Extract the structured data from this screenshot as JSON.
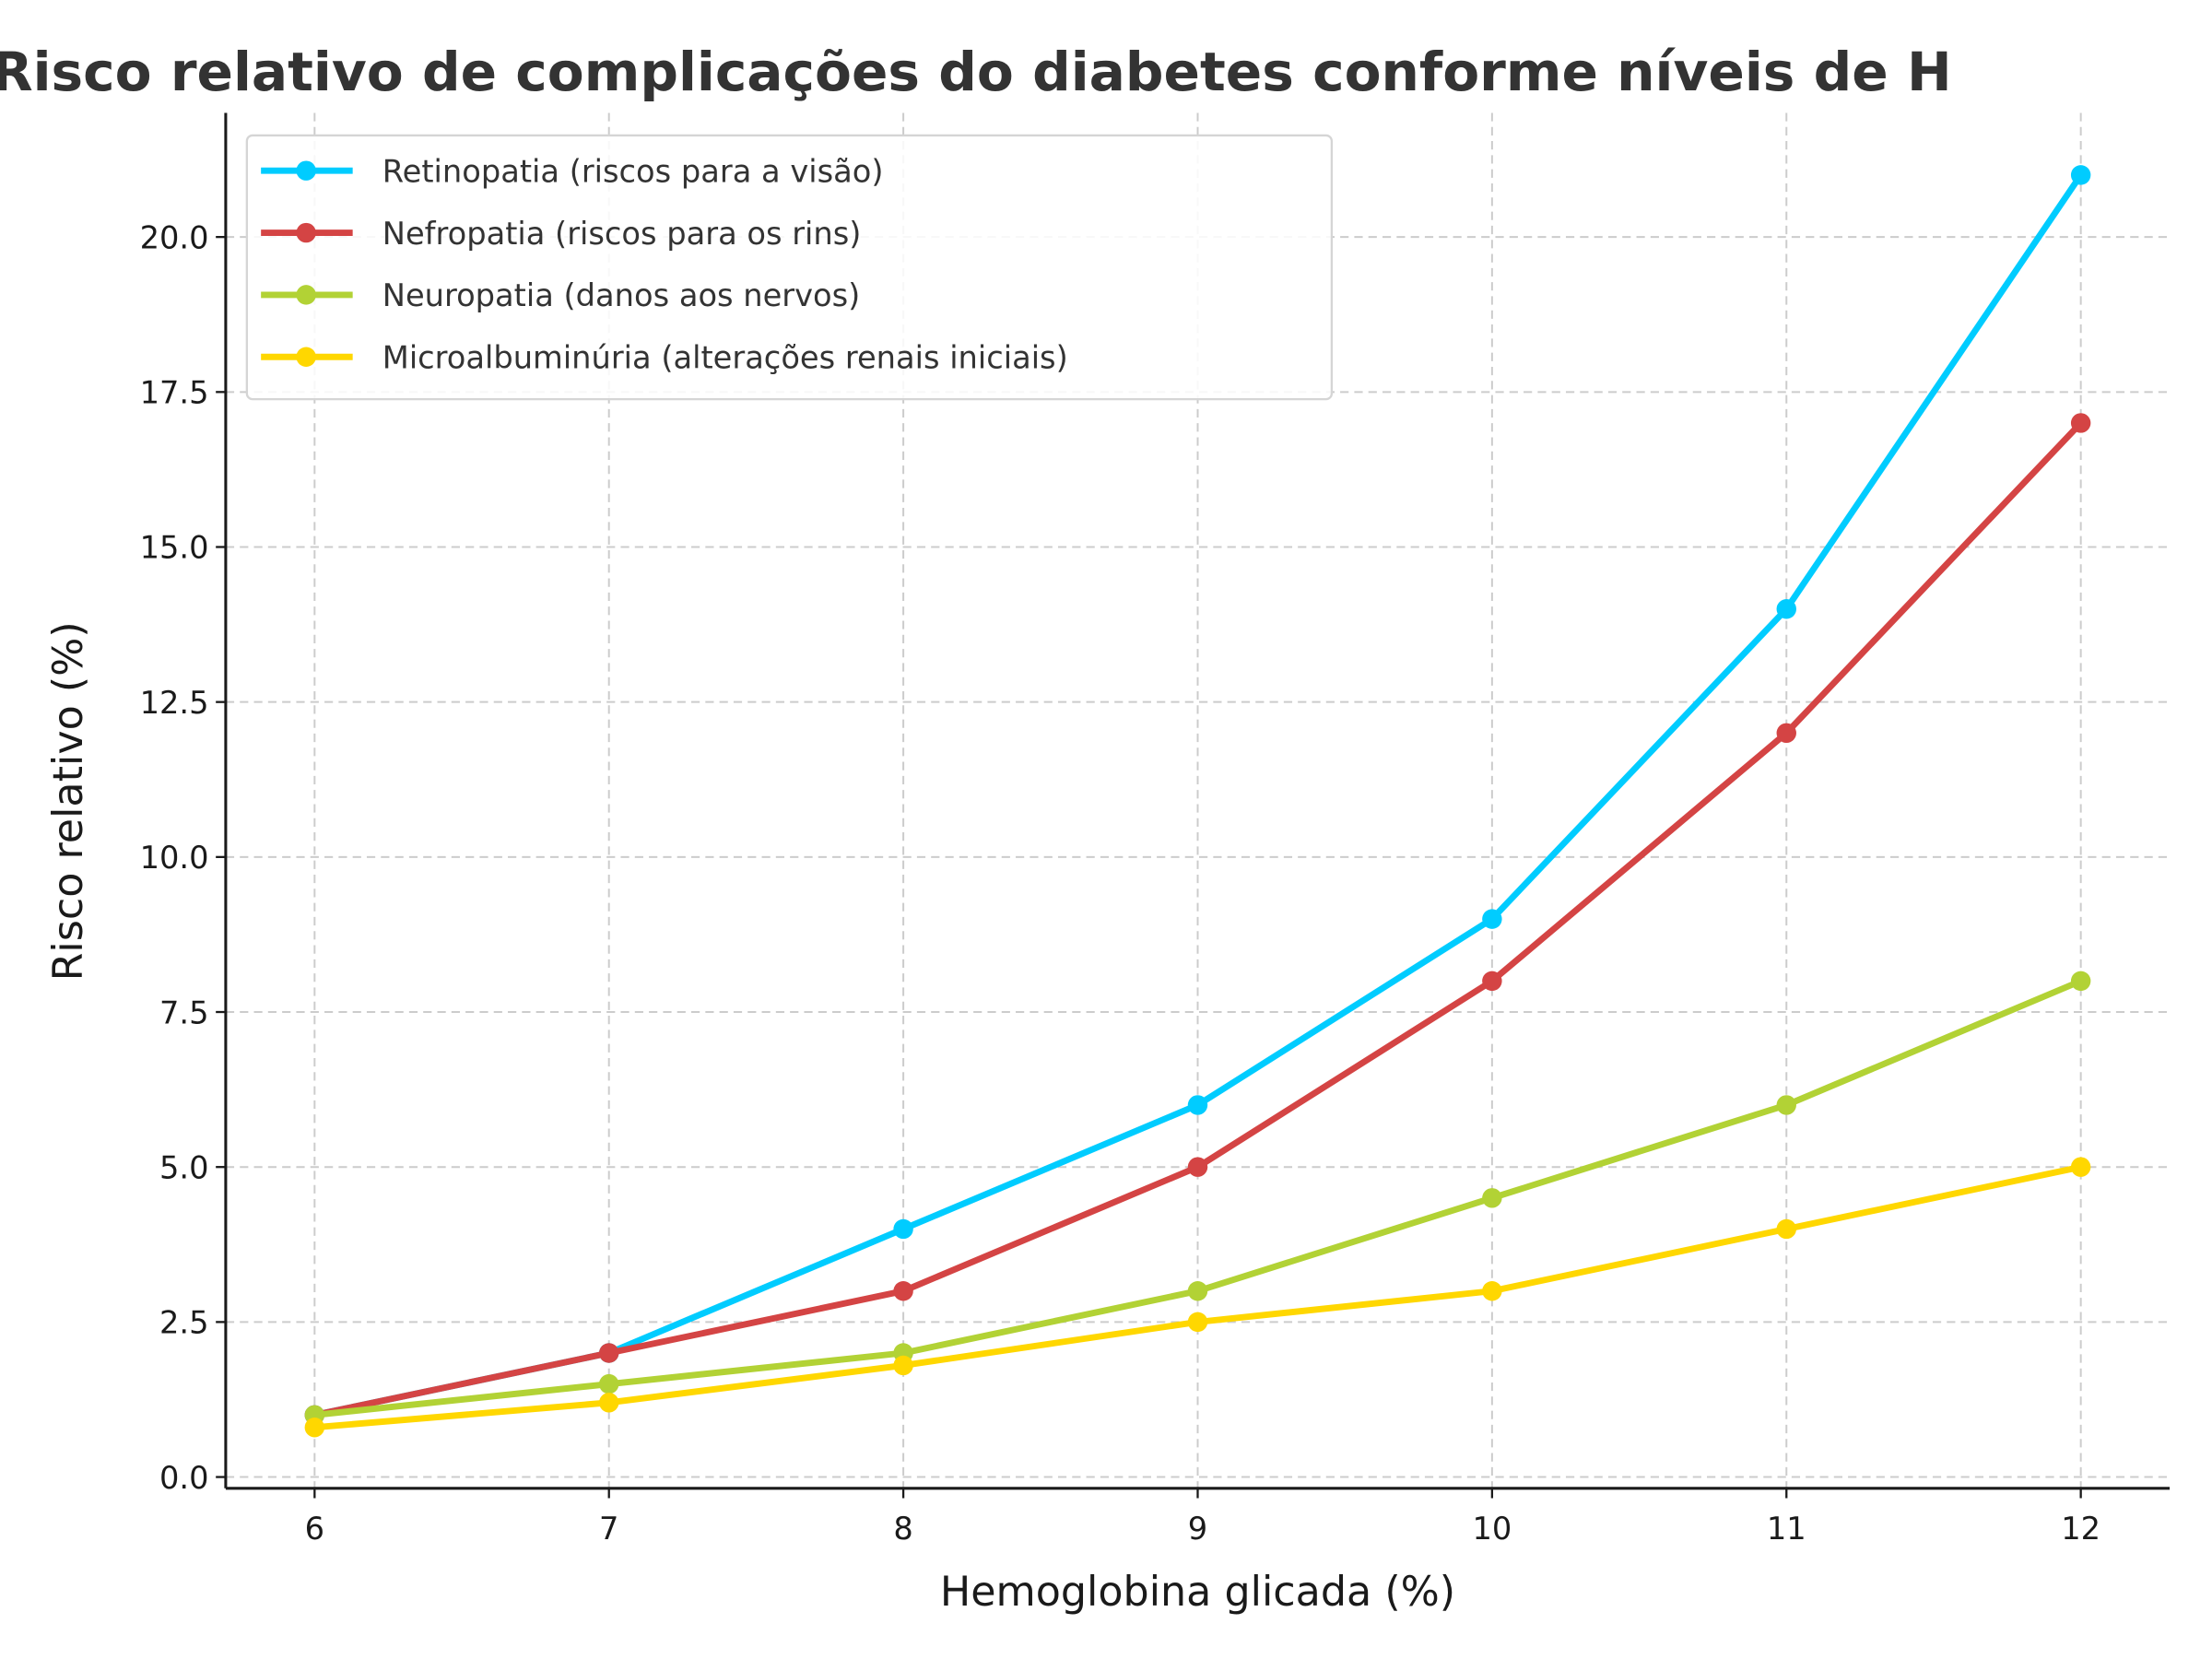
{
  "chart_data": {
    "type": "line",
    "title": "Risco relativo de complicações do diabetes conforme níveis de H",
    "xlabel": "Hemoglobina glicada (%)",
    "ylabel": "Risco relativo (%)",
    "x": [
      6,
      7,
      8,
      9,
      10,
      11,
      12
    ],
    "xticks": [
      "6",
      "7",
      "8",
      "9",
      "10",
      "11",
      "12"
    ],
    "yticks": [
      "0.0",
      "2.5",
      "5.0",
      "7.5",
      "10.0",
      "12.5",
      "15.0",
      "17.5",
      "20.0"
    ],
    "xlim": [
      5.7,
      12.3
    ],
    "ylim": [
      -0.2,
      22.0
    ],
    "grid": true,
    "legend_position": "top-left",
    "series": [
      {
        "name": "Retinopatia (riscos para a visão)",
        "color": "#00ccff",
        "values": [
          1,
          2,
          4,
          6,
          9,
          14,
          21
        ]
      },
      {
        "name": "Nefropatia (riscos para os rins)",
        "color": "#d44444",
        "values": [
          1,
          2,
          3,
          5,
          8,
          12,
          17
        ]
      },
      {
        "name": "Neuropatia (danos aos nervos)",
        "color": "#b2d235",
        "values": [
          1,
          1.5,
          2,
          3,
          4.5,
          6,
          8
        ]
      },
      {
        "name": "Microalbuminúria (alterações renais iniciais)",
        "color": "#ffd700",
        "values": [
          0.8,
          1.2,
          1.8,
          2.5,
          3,
          4,
          5
        ]
      }
    ]
  }
}
